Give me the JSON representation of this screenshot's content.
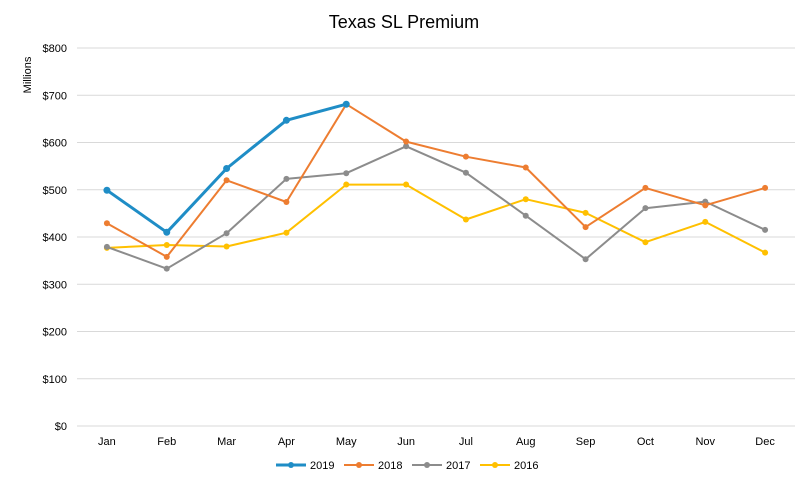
{
  "chart_data": {
    "type": "line",
    "title": "Texas SL Premium",
    "ylabel": "Millions",
    "xlabel": "",
    "categories": [
      "Jan",
      "Feb",
      "Mar",
      "Apr",
      "May",
      "Jun",
      "Jul",
      "Aug",
      "Sep",
      "Oct",
      "Nov",
      "Dec"
    ],
    "ylim": [
      0,
      800
    ],
    "yticks": [
      0,
      100,
      200,
      300,
      400,
      500,
      600,
      700,
      800
    ],
    "ytick_labels": [
      "$0",
      "$100",
      "$200",
      "$300",
      "$400",
      "$500",
      "$600",
      "$700",
      "$800"
    ],
    "grid": true,
    "legend_position": "bottom",
    "series": [
      {
        "name": "2019",
        "color": "#1f8dc6",
        "values": [
          499,
          410,
          545,
          647,
          681,
          null,
          null,
          null,
          null,
          null,
          null,
          null
        ]
      },
      {
        "name": "2018",
        "color": "#ed7d31",
        "values": [
          429,
          358,
          520,
          474,
          681,
          602,
          570,
          547,
          421,
          504,
          467,
          504
        ]
      },
      {
        "name": "2017",
        "color": "#8c8c8c",
        "values": [
          379,
          333,
          408,
          523,
          535,
          592,
          536,
          445,
          353,
          461,
          475,
          415
        ]
      },
      {
        "name": "2016",
        "color": "#ffc000",
        "values": [
          377,
          383,
          380,
          409,
          511,
          511,
          437,
          480,
          451,
          389,
          432,
          367
        ]
      }
    ]
  }
}
